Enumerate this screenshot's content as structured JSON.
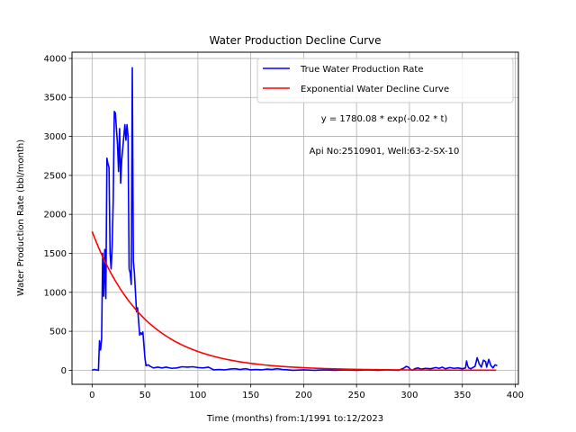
{
  "chart_data": {
    "type": "line",
    "title": "Water Production Decline Curve",
    "xlabel": "Time (months) from:1/1991 to:12/2023",
    "ylabel": "Water Production Rate (bbl/month)",
    "xlim": [
      -19,
      403
    ],
    "ylim": [
      -180,
      4080
    ],
    "xticks": [
      0,
      50,
      100,
      150,
      200,
      250,
      300,
      350,
      400
    ],
    "yticks": [
      0,
      500,
      1000,
      1500,
      2000,
      2500,
      3000,
      3500,
      4000
    ],
    "grid": true,
    "legend_position": "top-right",
    "annotations": [
      "y = 1780.08 * exp(-0.02 * t)",
      "Api No:2510901, Well:63-2-SX-10"
    ],
    "series": [
      {
        "name": "True Water Production Rate",
        "color": "#0000ff",
        "points": [
          [
            0,
            0
          ],
          [
            2,
            10
          ],
          [
            4,
            5
          ],
          [
            6,
            0
          ],
          [
            7,
            380
          ],
          [
            8,
            260
          ],
          [
            9,
            400
          ],
          [
            10,
            1500
          ],
          [
            11,
            950
          ],
          [
            12,
            1550
          ],
          [
            13,
            920
          ],
          [
            14,
            2720
          ],
          [
            15,
            2650
          ],
          [
            16,
            2600
          ],
          [
            17,
            1500
          ],
          [
            18,
            1300
          ],
          [
            19,
            1600
          ],
          [
            20,
            2200
          ],
          [
            21,
            3320
          ],
          [
            22,
            3300
          ],
          [
            23,
            3100
          ],
          [
            24,
            2900
          ],
          [
            25,
            2550
          ],
          [
            26,
            3100
          ],
          [
            27,
            2400
          ],
          [
            28,
            2700
          ],
          [
            29,
            2850
          ],
          [
            30,
            3000
          ],
          [
            31,
            3150
          ],
          [
            32,
            2950
          ],
          [
            33,
            3150
          ],
          [
            34,
            3000
          ],
          [
            35,
            1300
          ],
          [
            36,
            1250
          ],
          [
            37,
            1100
          ],
          [
            38,
            3880
          ],
          [
            39,
            1400
          ],
          [
            40,
            1250
          ],
          [
            41,
            1000
          ],
          [
            42,
            750
          ],
          [
            43,
            800
          ],
          [
            44,
            620
          ],
          [
            45,
            450
          ],
          [
            46,
            480
          ],
          [
            47,
            460
          ],
          [
            48,
            490
          ],
          [
            49,
            320
          ],
          [
            50,
            150
          ],
          [
            51,
            60
          ],
          [
            53,
            70
          ],
          [
            55,
            50
          ],
          [
            58,
            30
          ],
          [
            62,
            40
          ],
          [
            66,
            30
          ],
          [
            70,
            40
          ],
          [
            75,
            25
          ],
          [
            80,
            30
          ],
          [
            85,
            45
          ],
          [
            90,
            40
          ],
          [
            95,
            45
          ],
          [
            100,
            35
          ],
          [
            105,
            30
          ],
          [
            110,
            40
          ],
          [
            115,
            5
          ],
          [
            120,
            10
          ],
          [
            125,
            5
          ],
          [
            130,
            15
          ],
          [
            135,
            20
          ],
          [
            140,
            10
          ],
          [
            145,
            20
          ],
          [
            150,
            5
          ],
          [
            155,
            10
          ],
          [
            160,
            5
          ],
          [
            165,
            15
          ],
          [
            170,
            10
          ],
          [
            175,
            20
          ],
          [
            180,
            10
          ],
          [
            185,
            5
          ],
          [
            190,
            0
          ],
          [
            200,
            5
          ],
          [
            210,
            0
          ],
          [
            220,
            5
          ],
          [
            230,
            0
          ],
          [
            240,
            5
          ],
          [
            250,
            0
          ],
          [
            260,
            5
          ],
          [
            270,
            0
          ],
          [
            280,
            5
          ],
          [
            290,
            0
          ],
          [
            295,
            30
          ],
          [
            297,
            50
          ],
          [
            299,
            40
          ],
          [
            301,
            10
          ],
          [
            303,
            0
          ],
          [
            305,
            20
          ],
          [
            308,
            30
          ],
          [
            311,
            15
          ],
          [
            315,
            25
          ],
          [
            320,
            20
          ],
          [
            325,
            35
          ],
          [
            328,
            25
          ],
          [
            331,
            40
          ],
          [
            334,
            20
          ],
          [
            338,
            35
          ],
          [
            342,
            25
          ],
          [
            346,
            30
          ],
          [
            350,
            20
          ],
          [
            353,
            30
          ],
          [
            354,
            120
          ],
          [
            355,
            60
          ],
          [
            356,
            30
          ],
          [
            358,
            20
          ],
          [
            362,
            50
          ],
          [
            364,
            160
          ],
          [
            366,
            80
          ],
          [
            368,
            40
          ],
          [
            370,
            130
          ],
          [
            372,
            110
          ],
          [
            373,
            40
          ],
          [
            375,
            140
          ],
          [
            377,
            60
          ],
          [
            379,
            30
          ],
          [
            381,
            70
          ],
          [
            383,
            60
          ]
        ]
      },
      {
        "name": "Exponential Water Decline Curve",
        "color": "#ff0000",
        "equation": "y = 1780.08 * exp(-0.02 * t)",
        "x_range": [
          0,
          383
        ]
      }
    ]
  }
}
